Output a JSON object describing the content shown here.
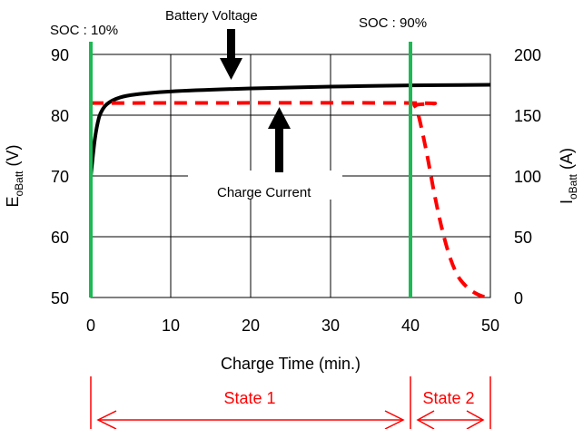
{
  "chart_data": {
    "type": "line",
    "xlabel": "Charge Time (min.)",
    "ylabel_left": {
      "main": "E",
      "sub": "oBatt",
      "unit": " (V)"
    },
    "ylabel_right": {
      "main": "I",
      "sub": "oBatt",
      "unit": " (A)"
    },
    "xlim": [
      0,
      50
    ],
    "ylim_left": [
      50,
      90
    ],
    "ylim_right": [
      0,
      200
    ],
    "x_ticks": [
      "0",
      "10",
      "20",
      "30",
      "40",
      "50"
    ],
    "y_ticks_left": [
      "50",
      "60",
      "70",
      "80",
      "90"
    ],
    "y_ticks_right": [
      "0",
      "50",
      "100",
      "150",
      "200"
    ],
    "grid": true,
    "series": [
      {
        "name": "Battery Voltage",
        "axis": "left",
        "color": "#000000",
        "style": "solid",
        "points": [
          [
            0,
            70
          ],
          [
            0.5,
            76
          ],
          [
            1,
            79.5
          ],
          [
            1.5,
            81
          ],
          [
            2,
            81.8
          ],
          [
            3,
            82.6
          ],
          [
            5,
            83.3
          ],
          [
            10,
            83.9
          ],
          [
            20,
            84.4
          ],
          [
            30,
            84.7
          ],
          [
            40,
            84.9
          ],
          [
            50,
            85
          ]
        ]
      },
      {
        "name": "Charge Current",
        "axis": "right",
        "color": "#ff0000",
        "style": "dashed",
        "points": [
          [
            0,
            160
          ],
          [
            40,
            160
          ],
          [
            40.5,
            158
          ],
          [
            41,
            150
          ],
          [
            42,
            120
          ],
          [
            43,
            85
          ],
          [
            44,
            55
          ],
          [
            45,
            32
          ],
          [
            46,
            17
          ],
          [
            47,
            9
          ],
          [
            48,
            4
          ],
          [
            49,
            1
          ],
          [
            50,
            0
          ]
        ]
      }
    ],
    "markers": [
      {
        "x": 0,
        "label": "SOC : 10%",
        "color": "#1db954"
      },
      {
        "x": 40,
        "label": "SOC : 90%",
        "color": "#1db954"
      }
    ],
    "annotations": {
      "voltage_label": "Battery Voltage",
      "current_label": "Charge Current"
    },
    "states": [
      {
        "label": "State 1",
        "from": 0,
        "to": 40
      },
      {
        "label": "State 2",
        "from": 40,
        "to": 50
      }
    ],
    "colors": {
      "soc_line": "#1db954",
      "state_markup": "#ff0000"
    }
  }
}
